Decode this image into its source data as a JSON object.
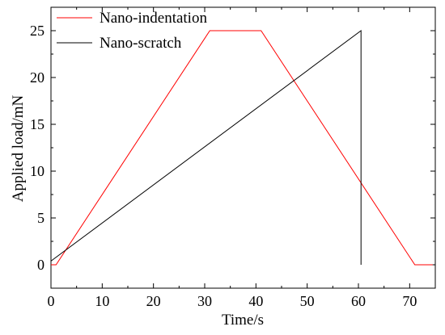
{
  "chart_data": {
    "type": "line",
    "xlabel": "Time/s",
    "ylabel": "Applied load/mN",
    "xlim": [
      0,
      75
    ],
    "ylim": [
      -2.5,
      27.5
    ],
    "xticks": [
      0,
      10,
      20,
      30,
      40,
      50,
      60,
      70
    ],
    "yticks": [
      0,
      5,
      10,
      15,
      20,
      25
    ],
    "grid": false,
    "legend_position": "top-left",
    "series": [
      {
        "name": "Nano-indentation",
        "color": "#ff0000",
        "points": [
          [
            0,
            0
          ],
          [
            1,
            0
          ],
          [
            31,
            25
          ],
          [
            41,
            25
          ],
          [
            71,
            0
          ],
          [
            74.5,
            0
          ]
        ]
      },
      {
        "name": "Nano-scratch",
        "color": "#000000",
        "points": [
          [
            0,
            0.4
          ],
          [
            60.5,
            25
          ],
          [
            60.5,
            0
          ]
        ]
      }
    ]
  }
}
